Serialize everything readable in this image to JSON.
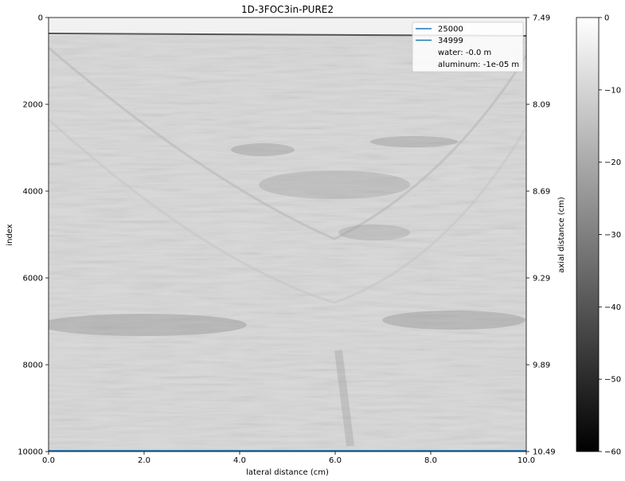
{
  "chart_data": {
    "type": "heatmap",
    "title": "1D-3FOC3in-PURE2",
    "xlabel": "lateral distance (cm)",
    "ylabel": "index",
    "ylabel_right": "axial distance (cm)",
    "xlim": [
      0.0,
      10.0
    ],
    "ylim": [
      10000,
      0
    ],
    "x_ticks": [
      "0.0",
      "2.0",
      "4.0",
      "6.0",
      "8.0",
      "10.0"
    ],
    "y_ticks": [
      "0",
      "2000",
      "4000",
      "6000",
      "8000",
      "10000"
    ],
    "y_ticks_right": [
      "7.49",
      "8.09",
      "8.69",
      "9.29",
      "9.89",
      "10.49"
    ],
    "colormap": "gray",
    "colorbar": {
      "range": [
        -60,
        0
      ],
      "ticks": [
        "0",
        "−10",
        "−20",
        "−30",
        "−40",
        "−50",
        "−60"
      ]
    },
    "lines": [
      {
        "name": "25000",
        "y": 10000,
        "color": "#1f77b4"
      },
      {
        "name": "34999",
        "y": 10000,
        "color": "#1f77b4"
      }
    ],
    "legend": {
      "location": "top-right",
      "entries": [
        "25000",
        "34999",
        "water: -0.0 m",
        "aluminum: -1e-05 m"
      ]
    },
    "grid": false
  }
}
